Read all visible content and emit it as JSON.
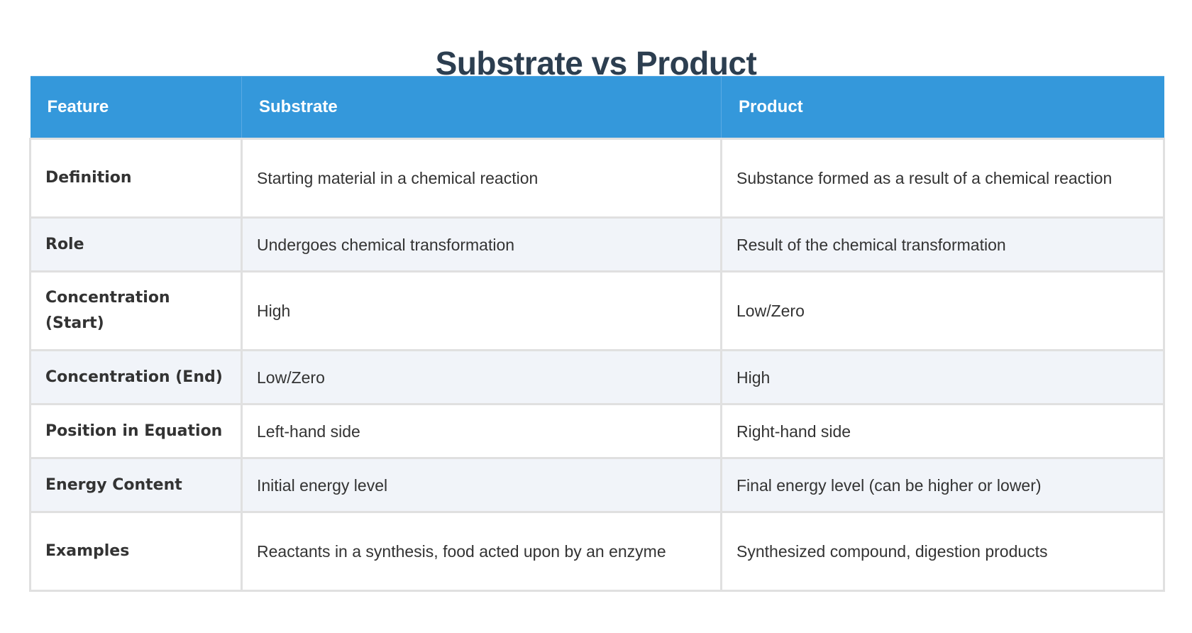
{
  "title": "Substrate vs Product",
  "table": {
    "headers": [
      "Feature",
      "Substrate",
      "Product"
    ],
    "rows": [
      {
        "feature": "Definition",
        "substrate": "Starting material in a chemical reaction",
        "product": "Substance formed as a result of a chemical reaction"
      },
      {
        "feature": "Role",
        "substrate": "Undergoes chemical transformation",
        "product": "Result of the chemical transformation"
      },
      {
        "feature": "Concentration (Start)",
        "substrate": "High",
        "product": "Low/Zero"
      },
      {
        "feature": "Concentration (End)",
        "substrate": "Low/Zero",
        "product": "High"
      },
      {
        "feature": "Position in Equation",
        "substrate": "Left-hand side",
        "product": "Right-hand side"
      },
      {
        "feature": "Energy Content",
        "substrate": "Initial energy level",
        "product": "Final energy level (can be higher or lower)"
      },
      {
        "feature": "Examples",
        "substrate": "Reactants in a synthesis, food acted upon by an enzyme",
        "product": "Synthesized compound, digestion products"
      }
    ]
  },
  "colors": {
    "title": "#2c3e50",
    "header_bg": "#3498db",
    "header_text": "#ffffff",
    "row_alt_bg": "#f1f4f9",
    "border": "#e0e0e0",
    "text": "#333333"
  }
}
